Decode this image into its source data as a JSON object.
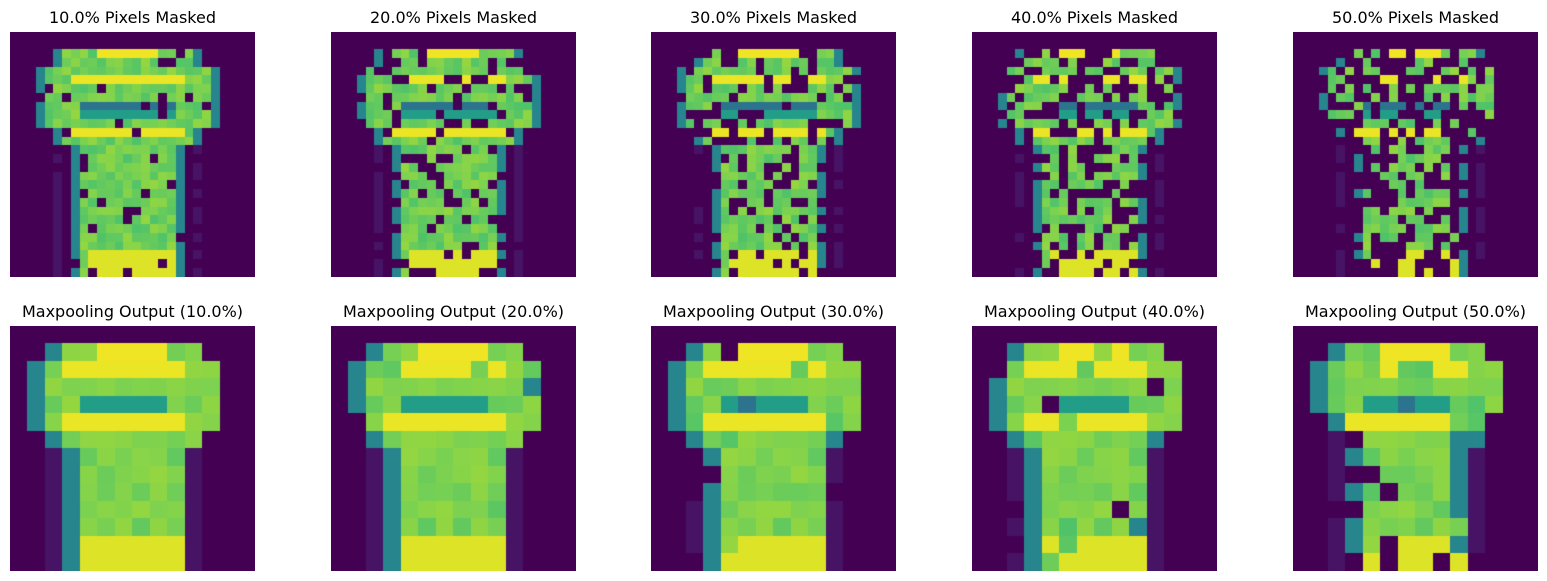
{
  "chart_data": [
    {
      "type": "heatmap",
      "title": "10.0% Pixels Masked",
      "row": "masked",
      "mask_fraction": 0.1,
      "grid_size": 28,
      "colormap": "viridis",
      "axes": "off"
    },
    {
      "type": "heatmap",
      "title": "20.0% Pixels Masked",
      "row": "masked",
      "mask_fraction": 0.2,
      "grid_size": 28,
      "colormap": "viridis",
      "axes": "off"
    },
    {
      "type": "heatmap",
      "title": "30.0% Pixels Masked",
      "row": "masked",
      "mask_fraction": 0.3,
      "grid_size": 28,
      "colormap": "viridis",
      "axes": "off"
    },
    {
      "type": "heatmap",
      "title": "40.0% Pixels Masked",
      "row": "masked",
      "mask_fraction": 0.4,
      "grid_size": 28,
      "colormap": "viridis",
      "axes": "off"
    },
    {
      "type": "heatmap",
      "title": "50.0% Pixels Masked",
      "row": "masked",
      "mask_fraction": 0.5,
      "grid_size": 28,
      "colormap": "viridis",
      "axes": "off"
    },
    {
      "type": "heatmap",
      "title": "Maxpooling Output (10.0%)",
      "row": "maxpool",
      "mask_fraction": 0.1,
      "grid_size": 14,
      "colormap": "viridis",
      "axes": "off"
    },
    {
      "type": "heatmap",
      "title": "Maxpooling Output (20.0%)",
      "row": "maxpool",
      "mask_fraction": 0.2,
      "grid_size": 14,
      "colormap": "viridis",
      "axes": "off"
    },
    {
      "type": "heatmap",
      "title": "Maxpooling Output (30.0%)",
      "row": "maxpool",
      "mask_fraction": 0.3,
      "grid_size": 14,
      "colormap": "viridis",
      "axes": "off"
    },
    {
      "type": "heatmap",
      "title": "Maxpooling Output (40.0%)",
      "row": "maxpool",
      "mask_fraction": 0.4,
      "grid_size": 14,
      "colormap": "viridis",
      "axes": "off"
    },
    {
      "type": "heatmap",
      "title": "Maxpooling Output (50.0%)",
      "row": "maxpool",
      "mask_fraction": 0.5,
      "grid_size": 14,
      "colormap": "viridis",
      "axes": "off"
    }
  ]
}
